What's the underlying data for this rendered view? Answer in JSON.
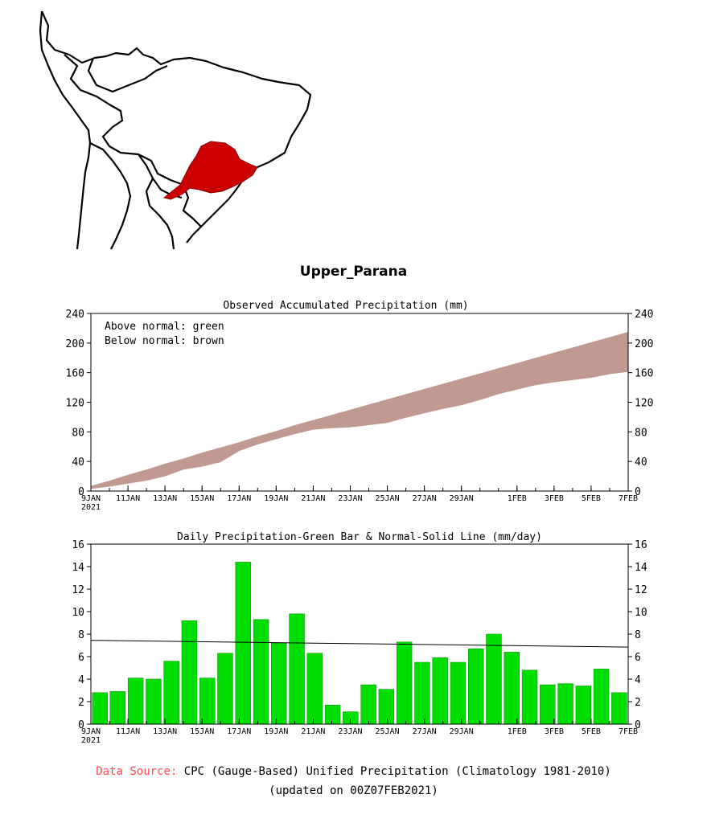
{
  "region_name": "Upper_Parana",
  "map": {
    "region_color": "#cc0000",
    "outline_color": "#000000",
    "highlight_icon": "upper-parana-basin-shape"
  },
  "chart_data": [
    {
      "type": "area",
      "title": "Observed Accumulated Precipitation (mm)",
      "annotations": [
        "Above normal: green",
        "Below normal: brown"
      ],
      "xlabel": "",
      "ylabel": "",
      "ylim": [
        0,
        240
      ],
      "yticks": [
        0,
        40,
        80,
        120,
        160,
        200,
        240
      ],
      "x_first_label_year": "2021",
      "x_tick_labels": [
        "9JAN",
        "11JAN",
        "13JAN",
        "15JAN",
        "17JAN",
        "19JAN",
        "21JAN",
        "23JAN",
        "25JAN",
        "27JAN",
        "29JAN",
        "1FEB",
        "3FEB",
        "5FEB",
        "7FEB"
      ],
      "x_tick_day_index": [
        0,
        2,
        4,
        6,
        8,
        10,
        12,
        14,
        16,
        18,
        20,
        23,
        25,
        27,
        29
      ],
      "above_color": "#00cc00",
      "below_color": "#c09a90",
      "series": [
        {
          "name": "Normal accumulated",
          "values": [
            7,
            14,
            22,
            29,
            37,
            44,
            52,
            59,
            66,
            74,
            81,
            89,
            96,
            103,
            110,
            117,
            124,
            131,
            138,
            145,
            152,
            159,
            166,
            173,
            180,
            187,
            194,
            201,
            208,
            215
          ]
        },
        {
          "name": "Observed accumulated",
          "values": [
            3,
            6,
            10,
            14,
            20,
            29,
            33,
            39,
            54,
            63,
            70,
            77,
            83,
            85,
            86,
            89,
            92,
            99,
            105,
            111,
            116,
            123,
            131,
            137,
            143,
            147,
            150,
            153,
            158,
            161
          ]
        }
      ]
    },
    {
      "type": "bar",
      "title": "Daily Precipitation-Green Bar & Normal-Solid Line (mm/day)",
      "xlabel": "",
      "ylabel": "",
      "ylim": [
        0,
        16
      ],
      "yticks": [
        0,
        2,
        4,
        6,
        8,
        10,
        12,
        14,
        16
      ],
      "x_first_label_year": "2021",
      "x_tick_labels": [
        "9JAN",
        "11JAN",
        "13JAN",
        "15JAN",
        "17JAN",
        "19JAN",
        "21JAN",
        "23JAN",
        "25JAN",
        "27JAN",
        "29JAN",
        "1FEB",
        "3FEB",
        "5FEB",
        "7FEB"
      ],
      "x_tick_day_index": [
        0,
        2,
        4,
        6,
        8,
        10,
        12,
        14,
        16,
        18,
        20,
        23,
        25,
        27,
        29
      ],
      "bar_color": "#00dd00",
      "normal_line_color": "#000000",
      "series": [
        {
          "name": "Daily precipitation",
          "values": [
            2.8,
            2.9,
            4.1,
            4.0,
            5.6,
            9.2,
            4.1,
            6.3,
            14.4,
            9.3,
            7.2,
            9.8,
            6.3,
            1.7,
            1.1,
            3.5,
            3.1,
            7.3,
            5.5,
            5.9,
            5.5,
            6.7,
            8.0,
            6.4,
            4.8,
            3.5,
            3.6,
            3.4,
            4.9,
            2.8
          ]
        },
        {
          "name": "Normal",
          "type": "line",
          "start": 7.45,
          "end": 6.85
        }
      ]
    }
  ],
  "footer": {
    "source_label": "Data Source:",
    "source_text": "CPC (Gauge-Based) Unified Precipitation (Climatology 1981-2010)",
    "updated": "(updated on 00Z07FEB2021)"
  }
}
